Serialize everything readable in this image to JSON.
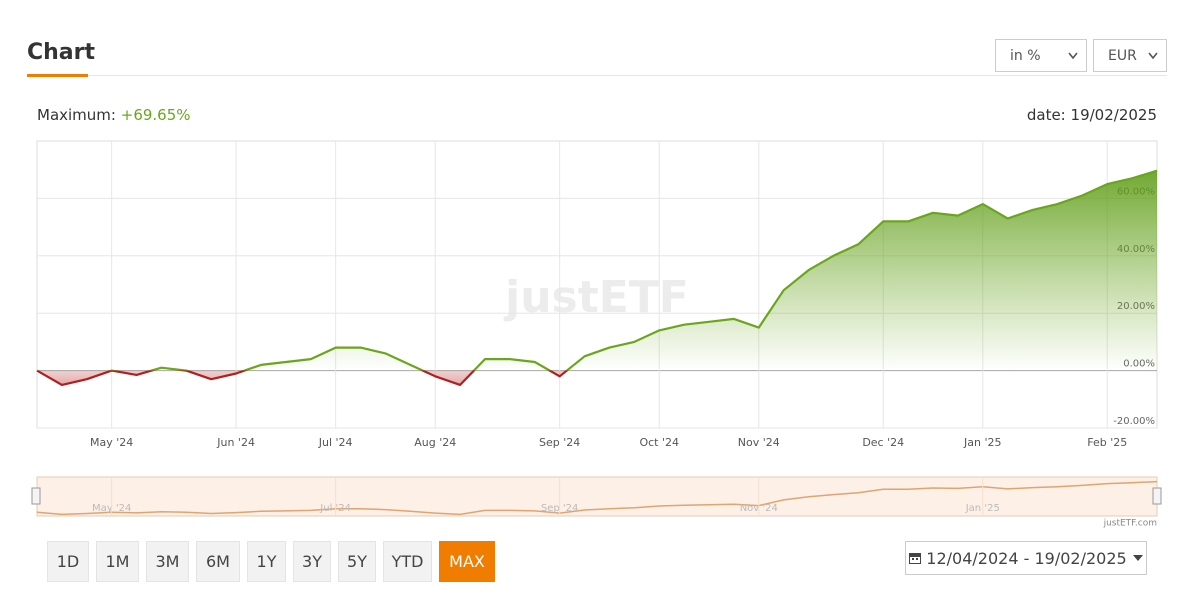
{
  "header": {
    "title": "Chart",
    "unit_select": "in %",
    "currency_select": "EUR"
  },
  "summary": {
    "maximum_label": "Maximum:",
    "maximum_value": "+69.65%",
    "date_label": "date:",
    "date_value": "19/02/2025"
  },
  "watermark": "justETF",
  "credit": "justETF.com",
  "ranges": [
    "1D",
    "1M",
    "3M",
    "6M",
    "1Y",
    "3Y",
    "5Y",
    "YTD",
    "MAX"
  ],
  "date_range": "12/04/2024 - 19/02/2025",
  "chart_data": {
    "type": "area",
    "categories": [
      null,
      null,
      null,
      "May '24",
      null,
      null,
      null,
      null,
      "Jun '24",
      null,
      null,
      null,
      "Jul '24",
      null,
      null,
      null,
      "Aug '24",
      null,
      null,
      null,
      null,
      "Sep '24",
      null,
      null,
      null,
      "Oct '24",
      null,
      null,
      null,
      "Nov '24",
      null,
      null,
      null,
      null,
      "Dec '24",
      null,
      null,
      null,
      "Jan '25",
      null,
      null,
      null,
      null,
      "Feb '25",
      null,
      null
    ],
    "series": [
      {
        "color": "#6aa61c",
        "negative_color": "#b31e1e",
        "values": [
          0,
          -5,
          -3,
          0,
          -1.5,
          1,
          0,
          -3,
          -1,
          2,
          3,
          4,
          8,
          8,
          6,
          2,
          -2,
          -5,
          4,
          4,
          3,
          -2,
          5,
          8,
          10,
          14,
          16,
          17,
          18,
          15,
          28,
          35,
          40,
          44,
          52,
          52,
          55,
          54,
          58,
          53,
          56,
          58,
          61,
          65,
          67,
          69.65
        ]
      }
    ],
    "ylim": [
      -20,
      80
    ],
    "yticks": [
      {
        "value": -20,
        "label": "-20.00%"
      },
      {
        "value": 0,
        "label": "0.00%"
      },
      {
        "value": 20,
        "label": "20.00%"
      },
      {
        "value": 40,
        "label": "40.00%"
      },
      {
        "value": 60,
        "label": "60.00%"
      }
    ],
    "grid": true,
    "navigator_labels": [
      3,
      12,
      21,
      29,
      38
    ]
  }
}
